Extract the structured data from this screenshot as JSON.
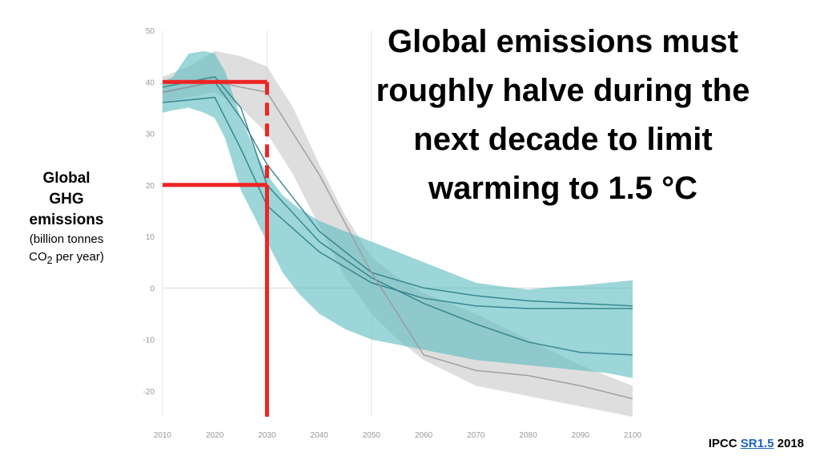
{
  "headline": {
    "lines": [
      "Global emissions must",
      "roughly halve during the",
      "next decade to limit",
      "warming to 1.5 °C"
    ]
  },
  "ylabel": {
    "line1": "Global",
    "line2": "GHG",
    "line3": "emissions",
    "line4": "(billion tonnes",
    "line5_pre": "CO",
    "line5_sub": "2",
    "line5_post": " per year)"
  },
  "footer": {
    "pre": "IPCC ",
    "link": "SR1.5",
    "post": " 2018"
  },
  "colors": {
    "teal_band": "#5fbdc2",
    "teal_line": "#2c8088",
    "gray_band": "#c8c8c8",
    "gray_line": "#9a9a9a",
    "red": "#ee2424"
  },
  "chart_data": {
    "type": "area",
    "xlim": [
      2010,
      2100
    ],
    "ylim": [
      -25,
      50
    ],
    "x_ticks": [
      2010,
      2020,
      2030,
      2040,
      2050,
      2060,
      2070,
      2080,
      2090,
      2100
    ],
    "y_ticks": [
      50,
      40,
      30,
      20,
      10,
      0,
      -10,
      -20
    ],
    "grid": "vertical at 2010, 2030, 2050; horizontal at 0",
    "bands": [
      {
        "color": "gray",
        "x": [
          2010,
          2015,
          2020,
          2025,
          2030,
          2035,
          2040,
          2045,
          2050,
          2055,
          2060,
          2070,
          2080,
          2090,
          2100
        ],
        "upper": [
          41,
          43,
          46,
          45,
          43,
          35,
          24,
          14,
          6,
          2,
          -1,
          -5,
          -10,
          -15,
          -19
        ],
        "lower": [
          36,
          37,
          38,
          35,
          30,
          22,
          12,
          2,
          -5,
          -10,
          -14,
          -19,
          -21,
          -23,
          -25
        ]
      },
      {
        "color": "teal",
        "x": [
          2010,
          2012,
          2015,
          2018,
          2020,
          2022,
          2025,
          2028,
          2030,
          2033,
          2036,
          2040,
          2045,
          2050,
          2055,
          2060,
          2065,
          2070,
          2075,
          2080,
          2085,
          2090,
          2095,
          2100
        ],
        "upper": [
          40,
          41,
          45.5,
          46,
          45.5,
          42,
          33,
          26,
          22,
          18,
          15.5,
          13,
          11,
          9,
          7,
          5,
          3,
          1,
          0.3,
          -0.3,
          0.2,
          0.5,
          1,
          1.5
        ],
        "lower": [
          34,
          34.5,
          35,
          34,
          33,
          29,
          19,
          13,
          9,
          3,
          -1,
          -5,
          -8,
          -10,
          -11,
          -12,
          -13,
          -14,
          -14.5,
          -15,
          -15.5,
          -16,
          -16.5,
          -17.5
        ]
      }
    ],
    "series": [
      {
        "color": "teal",
        "x": [
          2010,
          2020,
          2025,
          2030,
          2040,
          2050,
          2060,
          2070,
          2080,
          2090,
          2100
        ],
        "values": [
          38,
          40,
          33,
          24,
          11,
          3,
          0,
          -1.5,
          -2.5,
          -3,
          -3.5
        ]
      },
      {
        "color": "teal",
        "x": [
          2010,
          2020,
          2025,
          2030,
          2040,
          2050,
          2060,
          2070,
          2080,
          2090,
          2100
        ],
        "values": [
          36,
          37,
          27,
          16,
          7,
          1,
          -2,
          -3.5,
          -4,
          -4,
          -4
        ]
      },
      {
        "color": "teal",
        "x": [
          2010,
          2020,
          2025,
          2030,
          2040,
          2050,
          2060,
          2070,
          2080,
          2090,
          2100
        ],
        "values": [
          39,
          41,
          35,
          20,
          9,
          2,
          -3,
          -7,
          -10.5,
          -12.5,
          -13
        ]
      },
      {
        "color": "gray",
        "x": [
          2010,
          2020,
          2030,
          2040,
          2050,
          2060,
          2070,
          2080,
          2090,
          2100
        ],
        "values": [
          38,
          40,
          38,
          22,
          3,
          -13,
          -16,
          -17,
          -19,
          -21.5
        ]
      }
    ],
    "annotations": [
      {
        "type": "horizontal",
        "y": 40,
        "x_from": 2010,
        "x_to": 2030,
        "color": "red",
        "style": "solid"
      },
      {
        "type": "vertical",
        "x": 2030,
        "y_from": 40,
        "y_to": 20,
        "color": "red",
        "style": "dashed"
      },
      {
        "type": "horizontal",
        "y": 20,
        "x_from": 2010,
        "x_to": 2030,
        "color": "red",
        "style": "solid"
      },
      {
        "type": "vertical",
        "x": 2030,
        "y_from": 20,
        "y_to": -25,
        "color": "red",
        "style": "solid"
      }
    ]
  }
}
